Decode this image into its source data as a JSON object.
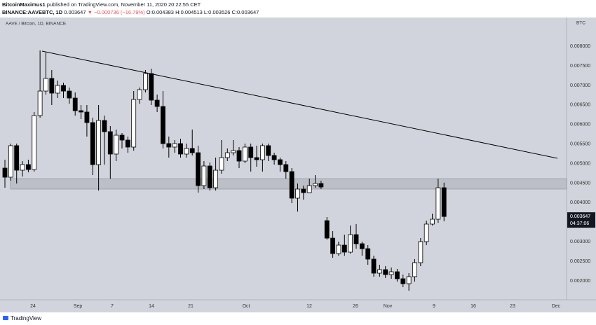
{
  "header": {
    "author": "BitcoinMaximus1",
    "published": "published on TradingView.com, November 11, 2020 20:22:55 CET",
    "symbol": "BINANCE:AAVEBTC, 1D",
    "last": "0.003647",
    "change": "▼ −0.000736 (−16.79%)",
    "ohlc": "O:0.004383 H:0.004513 L:0.003526 C:0.003647"
  },
  "footer": {
    "brand": "TradingView"
  },
  "chart_data": {
    "type": "candlestick",
    "title": "AAVE / Bitcoin, 1D, BINANCE",
    "unit_label": "BTC",
    "countdown": "04:37:06",
    "background": "#d1d4dc",
    "up_color": "#ffffff",
    "down_color": "#000000",
    "wick_color": "#000000",
    "grid": false,
    "open": [
      0.004885,
      0.004652,
      0.005459,
      0.004831,
      0.004975,
      0.004849,
      0.006229,
      0.006856,
      0.007179,
      0.006803,
      0.007,
      0.006856,
      0.006677,
      0.006355,
      0.006319,
      0.00605,
      0.004975,
      0.006104,
      0.005817,
      0.005244,
      0.005727,
      0.005602,
      0.005423,
      0.006641,
      0.006892,
      0.007304,
      0.006623,
      0.006462,
      0.005512,
      0.005423,
      0.005512,
      0.005244,
      0.005387,
      0.005279,
      0.004437,
      0.004939,
      0.004383,
      0.004831,
      0.005154,
      0.005279,
      0.005333,
      0.005064,
      0.005423,
      0.005154,
      0.0051,
      0.005459,
      0.005208,
      0.0051,
      0.004975,
      0.004796,
      0.004115,
      0.004348,
      0.004258,
      0.004437,
      0.004491,
      0.003541,
      0.003093,
      0.002699,
      0.002914,
      0.002735,
      0.003183,
      0.00295,
      0.002824,
      0.002556,
      0.002197,
      0.002287,
      0.002161,
      0.002233,
      0.002054,
      0.001928,
      0.002108,
      0.002466,
      0.003004,
      0.003452,
      0.003577,
      0.004383
    ],
    "high": [
      0.0051,
      0.005512,
      0.005512,
      0.005064,
      0.0051,
      0.006319,
      0.007896,
      0.007842,
      0.007394,
      0.007125,
      0.007071,
      0.006946,
      0.006821,
      0.006498,
      0.006498,
      0.006175,
      0.006498,
      0.006229,
      0.00596,
      0.005871,
      0.005781,
      0.005692,
      0.006856,
      0.006946,
      0.007394,
      0.00743,
      0.006767,
      0.006856,
      0.005692,
      0.005602,
      0.005638,
      0.005512,
      0.005871,
      0.005459,
      0.005064,
      0.005029,
      0.005154,
      0.005602,
      0.005387,
      0.005602,
      0.005423,
      0.005512,
      0.005512,
      0.005459,
      0.005512,
      0.005512,
      0.005279,
      0.005154,
      0.005064,
      0.004885,
      0.004491,
      0.004437,
      0.004616,
      0.004706,
      0.004563,
      0.003631,
      0.003272,
      0.003004,
      0.003183,
      0.003416,
      0.003452,
      0.003004,
      0.002914,
      0.002645,
      0.002412,
      0.002376,
      0.002341,
      0.002305,
      0.002161,
      0.002197,
      0.002556,
      0.003093,
      0.003541,
      0.00372,
      0.004616,
      0.004513
    ],
    "low": [
      0.004383,
      0.004563,
      0.004491,
      0.00467,
      0.004778,
      0.004796,
      0.006175,
      0.006767,
      0.006498,
      0.006677,
      0.006677,
      0.006534,
      0.006229,
      0.00614,
      0.005692,
      0.004706,
      0.004312,
      0.004975,
      0.004616,
      0.005064,
      0.005387,
      0.005279,
      0.005333,
      0.006534,
      0.006821,
      0.006498,
      0.006319,
      0.005387,
      0.005154,
      0.005279,
      0.005154,
      0.005154,
      0.005208,
      0.004258,
      0.004348,
      0.004312,
      0.004312,
      0.004742,
      0.005064,
      0.005208,
      0.004885,
      0.005011,
      0.004796,
      0.004921,
      0.004796,
      0.005064,
      0.004975,
      0.004796,
      0.004616,
      0.003989,
      0.003774,
      0.004079,
      0.004258,
      0.004383,
      0.004348,
      0.003057,
      0.002591,
      0.002645,
      0.002645,
      0.002699,
      0.002824,
      0.002645,
      0.002412,
      0.002108,
      0.002108,
      0.002072,
      0.002054,
      0.001982,
      0.001839,
      0.001749,
      0.001982,
      0.002376,
      0.002914,
      0.003416,
      0.003487,
      0.003526
    ],
    "close": [
      0.004652,
      0.005459,
      0.004831,
      0.004975,
      0.004849,
      0.006229,
      0.006856,
      0.007179,
      0.006803,
      0.007,
      0.006856,
      0.006677,
      0.006355,
      0.006319,
      0.00605,
      0.004975,
      0.006104,
      0.005817,
      0.005244,
      0.005727,
      0.005602,
      0.005423,
      0.006641,
      0.006892,
      0.007304,
      0.006623,
      0.006462,
      0.005512,
      0.005423,
      0.005512,
      0.005244,
      0.005387,
      0.005279,
      0.004437,
      0.004939,
      0.004383,
      0.004831,
      0.005154,
      0.005279,
      0.005333,
      0.005064,
      0.005423,
      0.005154,
      0.0051,
      0.005459,
      0.005208,
      0.0051,
      0.004975,
      0.004796,
      0.004115,
      0.004348,
      0.004258,
      0.004437,
      0.004491,
      0.004401,
      0.003093,
      0.002699,
      0.002914,
      0.002735,
      0.003183,
      0.00295,
      0.002824,
      0.002556,
      0.002197,
      0.002287,
      0.002161,
      0.002233,
      0.002054,
      0.001928,
      0.002108,
      0.002466,
      0.003004,
      0.003452,
      0.003577,
      0.004383,
      0.003647
    ],
    "xlim": [
      -0.84,
      95.93
    ],
    "ylim": [
      0.001516,
      0.008738
    ],
    "xticks": [
      {
        "value": 4.79,
        "label": "24"
      },
      {
        "value": 12.46,
        "label": "Sep"
      },
      {
        "value": 18.32,
        "label": "7"
      },
      {
        "value": 25.03,
        "label": "14"
      },
      {
        "value": 31.74,
        "label": "21"
      },
      {
        "value": 41.2,
        "label": "Oct"
      },
      {
        "value": 51.98,
        "label": "12"
      },
      {
        "value": 59.88,
        "label": "26"
      },
      {
        "value": 65.39,
        "label": "Nov"
      },
      {
        "value": 73.29,
        "label": "9"
      },
      {
        "value": 80,
        "label": "16"
      },
      {
        "value": 86.71,
        "label": "23"
      },
      {
        "value": 94.13,
        "label": "Dec"
      }
    ],
    "yticks": [
      {
        "value": 0.002,
        "label": "0.002000"
      },
      {
        "value": 0.0025,
        "label": "0.002500"
      },
      {
        "value": 0.003,
        "label": "0.003000"
      },
      {
        "value": 0.004,
        "label": "0.004000"
      },
      {
        "value": 0.0045,
        "label": "0.004500"
      },
      {
        "value": 0.005,
        "label": "0.005000"
      },
      {
        "value": 0.0055,
        "label": "0.005500"
      },
      {
        "value": 0.006,
        "label": "0.006000"
      },
      {
        "value": 0.0065,
        "label": "0.006500"
      },
      {
        "value": 0.007,
        "label": "0.007000"
      },
      {
        "value": 0.0075,
        "label": "0.007500"
      },
      {
        "value": 0.008,
        "label": "0.008000"
      }
    ],
    "trendline": {
      "x": [
        6.35,
        94.37
      ],
      "y": [
        0.007878,
        0.005136
      ],
      "color": "#000000"
    },
    "support_zone": {
      "x_start": 0.96,
      "y_range": [
        0.004348,
        0.004616
      ],
      "color": "#9598a1"
    }
  }
}
